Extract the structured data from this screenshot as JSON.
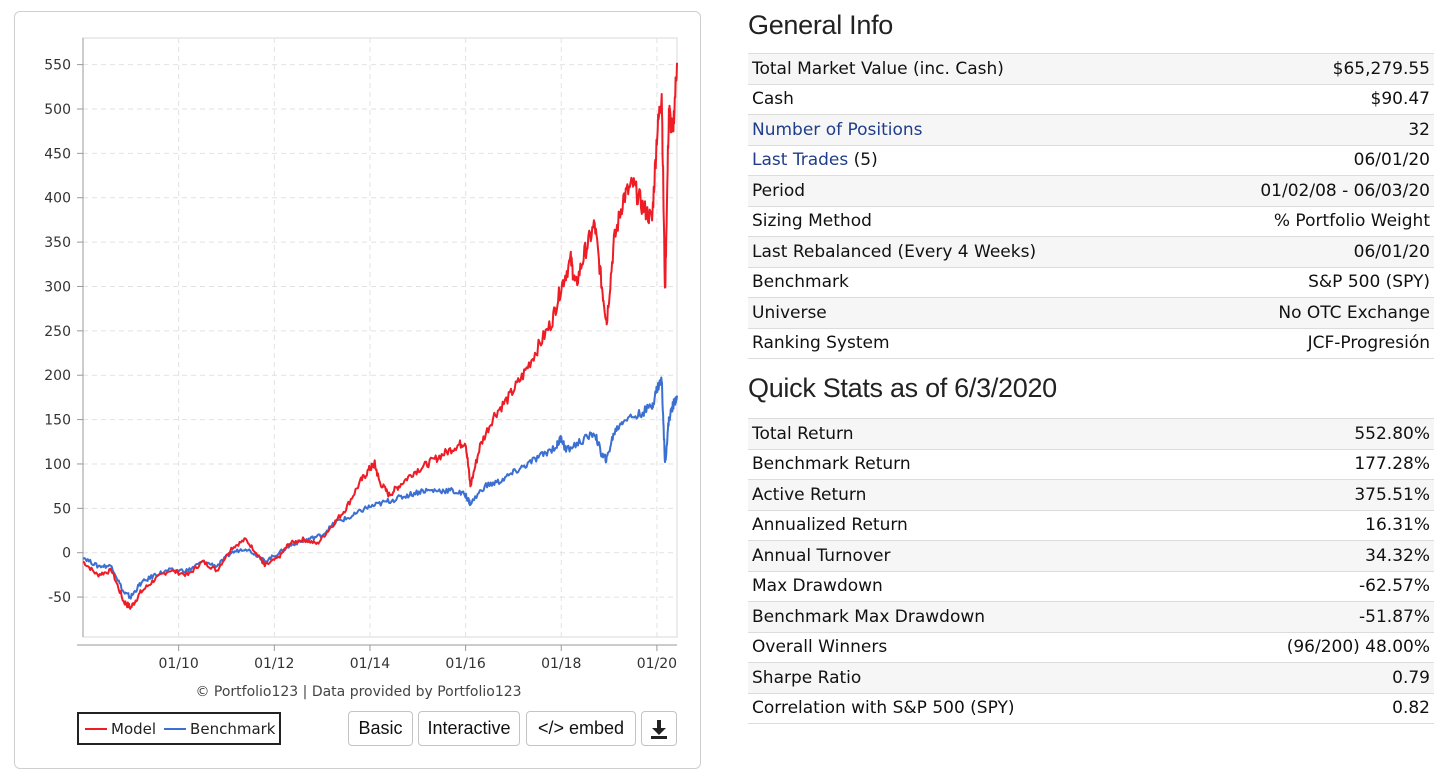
{
  "chart": {
    "credit": "© Portfolio123 | Data provided by Portfolio123",
    "legend": [
      {
        "name": "Model",
        "color": "#ee1c25"
      },
      {
        "name": "Benchmark",
        "color": "#3b6fd1"
      }
    ],
    "buttons": {
      "basic": "Basic",
      "interactive": "Interactive",
      "embed": "</> embed"
    }
  },
  "chart_data": {
    "type": "line",
    "y_ticks": [
      550,
      500,
      450,
      400,
      350,
      300,
      250,
      200,
      150,
      100,
      50,
      0,
      -50
    ],
    "x_ticks": [
      "01/10",
      "01/12",
      "01/14",
      "01/16",
      "01/18",
      "01/20"
    ],
    "ylim": [
      -95,
      580
    ],
    "xlim": [
      2008.0,
      2020.42
    ],
    "grid": true,
    "legend_position": "bottom-left",
    "series": [
      {
        "name": "Model",
        "color": "#ee1c25",
        "x": [
          2008.0,
          2008.3,
          2008.6,
          2008.85,
          2009.0,
          2009.2,
          2009.5,
          2009.8,
          2010.2,
          2010.5,
          2010.8,
          2011.1,
          2011.4,
          2011.7,
          2011.8,
          2012.1,
          2012.3,
          2012.6,
          2012.9,
          2013.2,
          2013.5,
          2013.8,
          2014.0,
          2014.1,
          2014.2,
          2014.4,
          2014.6,
          2014.9,
          2015.2,
          2015.5,
          2015.8,
          2016.0,
          2016.1,
          2016.3,
          2016.6,
          2016.9,
          2017.2,
          2017.5,
          2017.8,
          2018.0,
          2018.2,
          2018.3,
          2018.5,
          2018.7,
          2018.85,
          2018.95,
          2019.1,
          2019.3,
          2019.5,
          2019.7,
          2019.9,
          2020.0,
          2020.1,
          2020.17,
          2020.25,
          2020.33,
          2020.42
        ],
        "y": [
          -10,
          -25,
          -20,
          -55,
          -62,
          -45,
          -30,
          -20,
          -25,
          -10,
          -20,
          5,
          15,
          -5,
          -15,
          -5,
          10,
          15,
          10,
          30,
          50,
          80,
          95,
          100,
          80,
          65,
          75,
          90,
          100,
          110,
          120,
          125,
          75,
          120,
          155,
          175,
          200,
          230,
          260,
          300,
          330,
          300,
          340,
          370,
          300,
          260,
          350,
          400,
          415,
          390,
          375,
          470,
          520,
          290,
          500,
          470,
          552
        ]
      },
      {
        "name": "Benchmark",
        "color": "#3b6fd1",
        "x": [
          2008.0,
          2008.3,
          2008.6,
          2008.85,
          2009.0,
          2009.2,
          2009.5,
          2009.8,
          2010.2,
          2010.5,
          2010.8,
          2011.1,
          2011.4,
          2011.7,
          2011.8,
          2012.1,
          2012.4,
          2012.7,
          2013.0,
          2013.3,
          2013.6,
          2013.9,
          2014.2,
          2014.5,
          2014.8,
          2015.1,
          2015.4,
          2015.7,
          2016.0,
          2016.1,
          2016.4,
          2016.7,
          2017.0,
          2017.3,
          2017.6,
          2017.9,
          2018.0,
          2018.1,
          2018.4,
          2018.7,
          2018.85,
          2018.95,
          2019.1,
          2019.3,
          2019.6,
          2019.9,
          2020.0,
          2020.1,
          2020.17,
          2020.25,
          2020.33,
          2020.42
        ],
        "y": [
          -5,
          -15,
          -15,
          -45,
          -50,
          -35,
          -25,
          -20,
          -20,
          -10,
          -15,
          0,
          5,
          -5,
          -10,
          0,
          10,
          15,
          20,
          35,
          40,
          50,
          55,
          60,
          65,
          70,
          70,
          70,
          65,
          55,
          75,
          80,
          90,
          100,
          110,
          120,
          130,
          115,
          125,
          135,
          110,
          105,
          135,
          150,
          155,
          165,
          185,
          195,
          100,
          150,
          165,
          177
        ]
      }
    ]
  },
  "general_info": {
    "title": "General Info",
    "rows": [
      {
        "label": "Total Market Value (inc. Cash)",
        "value": "$65,279.55"
      },
      {
        "label": "Cash",
        "value": "$90.47"
      },
      {
        "label": "Number of Positions",
        "value": "32",
        "link": true
      },
      {
        "label": "Last Trades",
        "suffix": "(5)",
        "value": "06/01/20",
        "link": true
      },
      {
        "label": "Period",
        "value": "01/02/08 - 06/03/20"
      },
      {
        "label": "Sizing Method",
        "value": "% Portfolio Weight"
      },
      {
        "label": "Last Rebalanced (Every 4 Weeks)",
        "value": "06/01/20"
      },
      {
        "label": "Benchmark",
        "value": "S&P 500 (SPY)"
      },
      {
        "label": "Universe",
        "value": "No OTC Exchange"
      },
      {
        "label": "Ranking System",
        "value": "JCF-Progresión",
        "value_link": true
      }
    ]
  },
  "quick_stats": {
    "title": "Quick Stats as of 6/3/2020",
    "rows": [
      {
        "label": "Total Return",
        "value": "552.80%"
      },
      {
        "label": "Benchmark Return",
        "value": "177.28%"
      },
      {
        "label": "Active Return",
        "value": "375.51%"
      },
      {
        "label": "Annualized Return",
        "value": "16.31%"
      },
      {
        "label": "Annual Turnover",
        "value": "34.32%"
      },
      {
        "label": "Max Drawdown",
        "value": "-62.57%",
        "negative": true
      },
      {
        "label": "Benchmark Max Drawdown",
        "value": "-51.87%",
        "negative": true
      },
      {
        "label": "Overall Winners",
        "value": "(96/200) 48.00%"
      },
      {
        "label": "Sharpe Ratio",
        "value": "0.79"
      },
      {
        "label": "Correlation with S&P 500 (SPY)",
        "value": "0.82"
      }
    ]
  }
}
